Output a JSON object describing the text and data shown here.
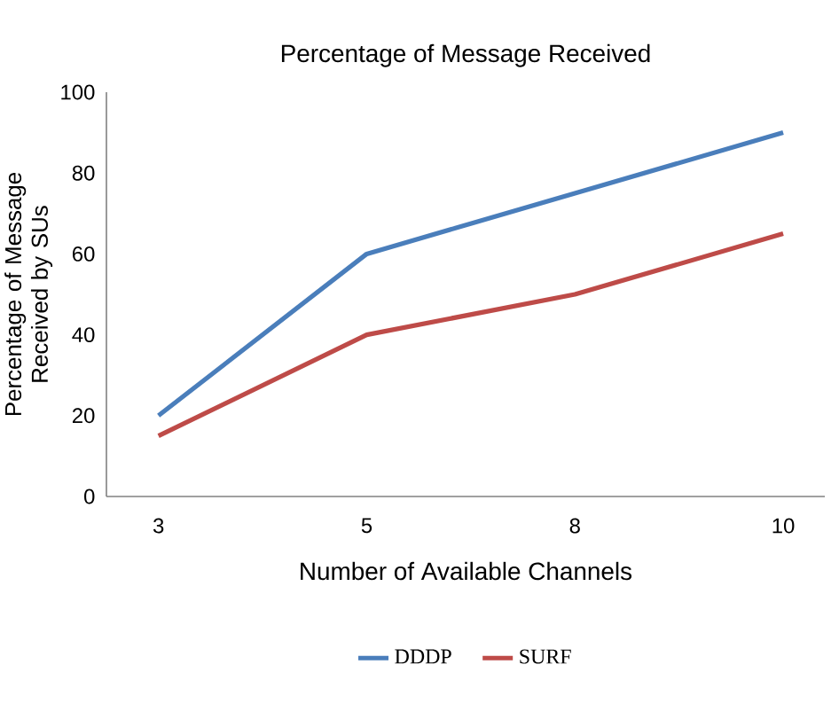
{
  "chart_data": {
    "type": "line",
    "title": "Percentage of Message Received",
    "xlabel": "Number of Available Channels",
    "ylabel": "Percentage of Message Received by SUs",
    "categories": [
      "3",
      "5",
      "8",
      "10"
    ],
    "series": [
      {
        "name": "DDDP",
        "color": "#4a7ebb",
        "values": [
          20,
          60,
          75,
          90
        ]
      },
      {
        "name": "SURF",
        "color": "#be4b48",
        "values": [
          15,
          40,
          50,
          65
        ]
      }
    ],
    "ylim": [
      0,
      100
    ],
    "yticks": [
      0,
      20,
      40,
      60,
      80,
      100
    ],
    "grid": false,
    "legend": "bottom",
    "marker": "none",
    "line_style": "solid"
  }
}
